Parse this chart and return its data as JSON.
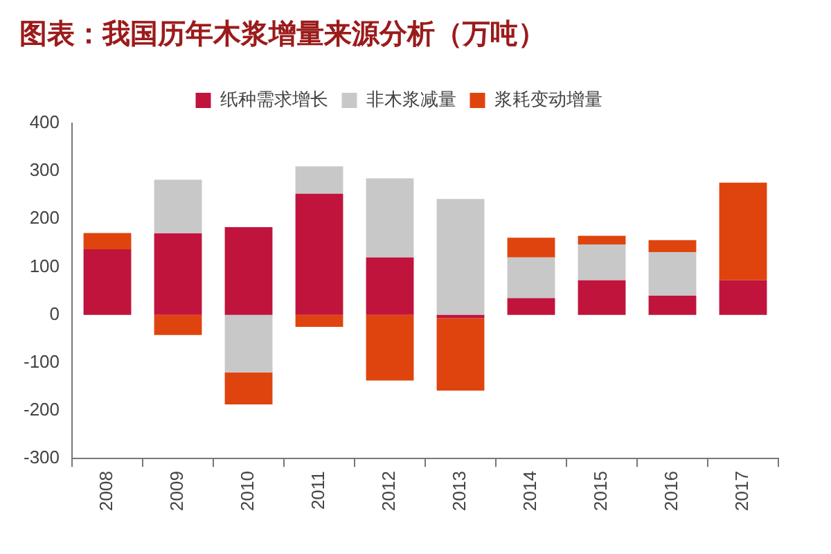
{
  "chart_data": {
    "type": "bar",
    "title": "图表：我国历年木浆增量来源分析（万吨）",
    "categories": [
      "2008",
      "2009",
      "2010",
      "2011",
      "2012",
      "2013",
      "2014",
      "2015",
      "2016",
      "2017"
    ],
    "series": [
      {
        "name": "纸种需求增长",
        "color": "#c0143c",
        "values": [
          137,
          170,
          183,
          253,
          120,
          -7,
          35,
          72,
          40,
          72
        ]
      },
      {
        "name": "非木浆减量",
        "color": "#c8c8c8",
        "values": [
          0,
          112,
          -120,
          57,
          165,
          242,
          85,
          75,
          91,
          0
        ]
      },
      {
        "name": "浆耗变动增量",
        "color": "#e0440e",
        "values": [
          34,
          -42,
          -67,
          -25,
          -137,
          -151,
          41,
          18,
          25,
          204
        ]
      }
    ],
    "stacked": true,
    "ylim": [
      -300,
      400
    ],
    "yticks": [
      -300,
      -200,
      -100,
      0,
      100,
      200,
      300,
      400
    ],
    "grid": false,
    "legend": "top"
  }
}
